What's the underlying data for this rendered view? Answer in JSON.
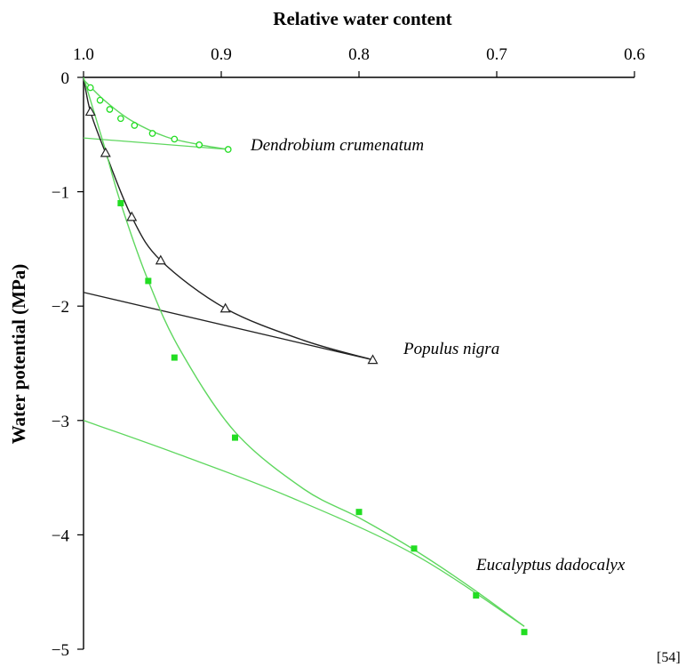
{
  "chart_data": {
    "type": "scatter",
    "title": "",
    "xlabel": "Relative water content",
    "ylabel": "Water potential (MPa)",
    "xlim": [
      1.0,
      0.6
    ],
    "ylim": [
      0,
      -5
    ],
    "x_ticks": [
      "1.0",
      "0.9",
      "0.8",
      "0.7",
      "0.6"
    ],
    "y_ticks": [
      "0",
      "−1",
      "−2",
      "−3",
      "−4",
      "−5"
    ],
    "grid": false,
    "source_note": "[54]",
    "colors": {
      "green": "#22dd22",
      "greenLine": "#5fd75f",
      "black": "#222222"
    },
    "series": [
      {
        "name": "Dendrobium crumenatum",
        "marker": "circle",
        "color": "green",
        "points": [
          {
            "x": 0.995,
            "y": -0.09
          },
          {
            "x": 0.988,
            "y": -0.2
          },
          {
            "x": 0.981,
            "y": -0.28
          },
          {
            "x": 0.973,
            "y": -0.36
          },
          {
            "x": 0.963,
            "y": -0.42
          },
          {
            "x": 0.95,
            "y": -0.49
          },
          {
            "x": 0.934,
            "y": -0.54
          },
          {
            "x": 0.916,
            "y": -0.59
          },
          {
            "x": 0.895,
            "y": -0.63
          }
        ],
        "curve": [
          {
            "x": 1.0,
            "y": -0.02
          },
          {
            "x": 0.985,
            "y": -0.2
          },
          {
            "x": 0.965,
            "y": -0.38
          },
          {
            "x": 0.94,
            "y": -0.52
          },
          {
            "x": 0.915,
            "y": -0.59
          },
          {
            "x": 0.895,
            "y": -0.63
          }
        ],
        "line": [
          {
            "x": 1.0,
            "y": -0.53
          },
          {
            "x": 0.895,
            "y": -0.63
          }
        ]
      },
      {
        "name": "Populus nigra",
        "marker": "triangle",
        "color": "black",
        "points": [
          {
            "x": 0.995,
            "y": -0.3
          },
          {
            "x": 0.984,
            "y": -0.66
          },
          {
            "x": 0.965,
            "y": -1.22
          },
          {
            "x": 0.944,
            "y": -1.6
          },
          {
            "x": 0.897,
            "y": -2.02
          },
          {
            "x": 0.79,
            "y": -2.47
          }
        ],
        "curve": [
          {
            "x": 1.0,
            "y": 0.0
          },
          {
            "x": 0.995,
            "y": -0.3
          },
          {
            "x": 0.984,
            "y": -0.66
          },
          {
            "x": 0.965,
            "y": -1.22
          },
          {
            "x": 0.944,
            "y": -1.6
          },
          {
            "x": 0.897,
            "y": -2.02
          },
          {
            "x": 0.84,
            "y": -2.3
          },
          {
            "x": 0.79,
            "y": -2.47
          }
        ],
        "line": [
          {
            "x": 1.0,
            "y": -1.88
          },
          {
            "x": 0.79,
            "y": -2.47
          }
        ]
      },
      {
        "name": "Eucalyptus dadocalyx",
        "marker": "square",
        "color": "green",
        "points": [
          {
            "x": 0.973,
            "y": -1.1
          },
          {
            "x": 0.953,
            "y": -1.78
          },
          {
            "x": 0.934,
            "y": -2.45
          },
          {
            "x": 0.89,
            "y": -3.15
          },
          {
            "x": 0.8,
            "y": -3.8
          },
          {
            "x": 0.76,
            "y": -4.12
          },
          {
            "x": 0.715,
            "y": -4.53
          },
          {
            "x": 0.68,
            "y": -4.85
          }
        ],
        "curve": [
          {
            "x": 1.0,
            "y": 0.0
          },
          {
            "x": 0.985,
            "y": -0.6
          },
          {
            "x": 0.973,
            "y": -1.1
          },
          {
            "x": 0.953,
            "y": -1.78
          },
          {
            "x": 0.93,
            "y": -2.38
          },
          {
            "x": 0.89,
            "y": -3.1
          },
          {
            "x": 0.84,
            "y": -3.6
          },
          {
            "x": 0.8,
            "y": -3.85
          },
          {
            "x": 0.76,
            "y": -4.13
          },
          {
            "x": 0.72,
            "y": -4.45
          },
          {
            "x": 0.68,
            "y": -4.8
          }
        ],
        "line": [
          {
            "x": 1.0,
            "y": -3.0
          },
          {
            "x": 0.93,
            "y": -3.3
          },
          {
            "x": 0.85,
            "y": -3.67
          },
          {
            "x": 0.76,
            "y": -4.17
          },
          {
            "x": 0.68,
            "y": -4.8
          }
        ]
      }
    ]
  }
}
